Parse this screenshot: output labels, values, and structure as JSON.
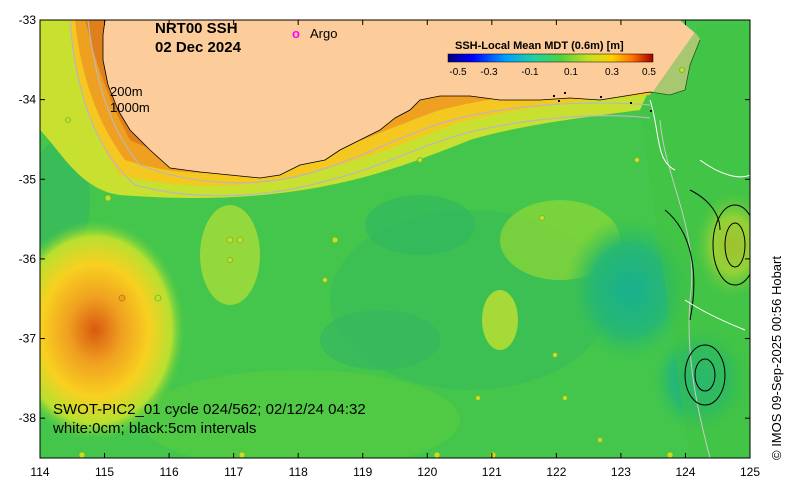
{
  "map": {
    "title": "NRT00 SSH",
    "date": "02 Dec 2024",
    "argo_marker": "o",
    "argo_label": "Argo",
    "isobath_200": "200m",
    "isobath_1000": "1000m",
    "swot_line1": "SWOT-PIC2_01 cycle 024/562; 02/12/24 04:32",
    "swot_line2": "white:0cm; black:5cm intervals",
    "credit": "© IMOS 09-Sep-2025 00:56 Hobart",
    "x_ticks": [
      "114",
      "115",
      "116",
      "117",
      "118",
      "119",
      "120",
      "121",
      "122",
      "123",
      "124",
      "125"
    ],
    "y_ticks": [
      "-33",
      "-34",
      "-35",
      "-36",
      "-37",
      "-38"
    ],
    "lon_range": [
      114,
      125
    ],
    "lat_range": [
      -38.5,
      -33
    ]
  },
  "colorbar": {
    "title": "SSH-Local Mean MDT (0.6m) [m]",
    "ticks": [
      "-0.5",
      "-0.3",
      "-0.1",
      "0.1",
      "0.3",
      "0.5"
    ],
    "range": [
      -0.5,
      0.5
    ]
  },
  "colors": {
    "land": "#fccc9a",
    "ocean_base": "#3cc44a",
    "argo": "#ff00ff",
    "warm_core": "#e06a10",
    "cool_eddy": "#18b48a"
  }
}
